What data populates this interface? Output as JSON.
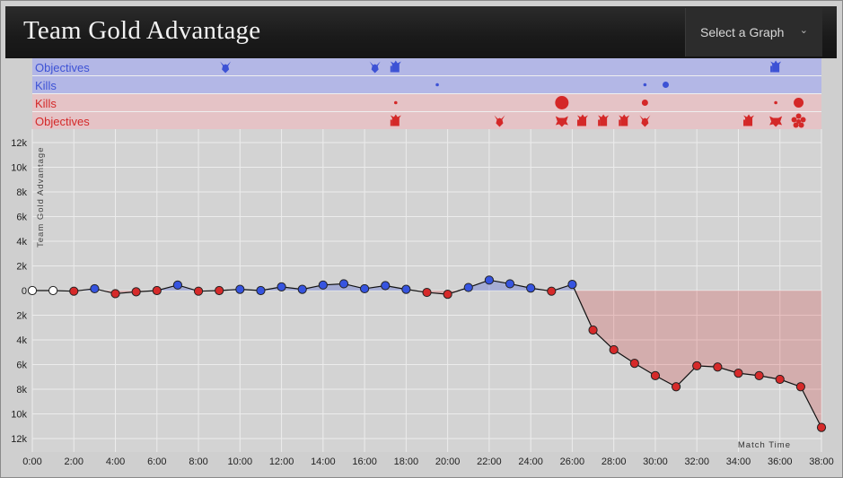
{
  "header": {
    "title": "Team Gold Advantage",
    "select_label": "Select a Graph"
  },
  "colors": {
    "blue": "#3d52d5",
    "red": "#d42828",
    "blue_band": "#b3b7e6",
    "red_band": "#e5c3c6",
    "plot_bg": "#d3d3d3"
  },
  "rows": [
    {
      "label": "Objectives",
      "team": "blue",
      "kind": "objectives",
      "events": [
        {
          "t": 9.3,
          "icon": "dragon"
        },
        {
          "t": 16.5,
          "icon": "dragon"
        },
        {
          "t": 17.5,
          "icon": "tower"
        },
        {
          "t": 35.8,
          "icon": "tower"
        }
      ]
    },
    {
      "label": "Kills",
      "team": "blue",
      "kind": "kills",
      "events": [
        {
          "t": 19.5,
          "n": 1
        },
        {
          "t": 29.5,
          "n": 1
        },
        {
          "t": 30.5,
          "n": 2
        }
      ]
    },
    {
      "label": "Kills",
      "team": "red",
      "kind": "kills",
      "events": [
        {
          "t": 17.5,
          "n": 1
        },
        {
          "t": 25.5,
          "n": 4
        },
        {
          "t": 29.5,
          "n": 2
        },
        {
          "t": 35.8,
          "n": 1
        },
        {
          "t": 36.9,
          "n": 3
        }
      ]
    },
    {
      "label": "Objectives",
      "team": "red",
      "kind": "objectives",
      "events": [
        {
          "t": 17.5,
          "icon": "tower"
        },
        {
          "t": 22.5,
          "icon": "dragon"
        },
        {
          "t": 25.5,
          "icon": "baron"
        },
        {
          "t": 26.5,
          "icon": "tower"
        },
        {
          "t": 27.5,
          "icon": "tower"
        },
        {
          "t": 28.5,
          "icon": "tower"
        },
        {
          "t": 29.5,
          "icon": "dragon"
        },
        {
          "t": 34.5,
          "icon": "tower"
        },
        {
          "t": 35.8,
          "icon": "baron"
        },
        {
          "t": 36.9,
          "icon": "nexus"
        }
      ]
    }
  ],
  "chart_data": {
    "type": "line",
    "title": "Team Gold Advantage",
    "xlabel": "Match Time",
    "ylabel": "Team Gold Advantage",
    "x": [
      0,
      1,
      2,
      3,
      4,
      5,
      6,
      7,
      8,
      9,
      10,
      11,
      12,
      13,
      14,
      15,
      16,
      17,
      18,
      19,
      20,
      21,
      22,
      23,
      24,
      25,
      26,
      27,
      28,
      29,
      30,
      31,
      32,
      33,
      34,
      35,
      36,
      37,
      38
    ],
    "y": [
      0,
      0,
      -50,
      150,
      -250,
      -100,
      0,
      450,
      -50,
      0,
      100,
      0,
      300,
      100,
      450,
      550,
      150,
      400,
      100,
      -150,
      -300,
      250,
      850,
      550,
      200,
      -50,
      500,
      -3200,
      -4800,
      -5900,
      -6900,
      -7800,
      -6100,
      -6200,
      -6700,
      -6900,
      -7200,
      -7800,
      -11100
    ],
    "point_team": [
      "neutral",
      "neutral",
      "red",
      "blue",
      "red",
      "red",
      "red",
      "blue",
      "red",
      "red",
      "blue",
      "blue",
      "blue",
      "blue",
      "blue",
      "blue",
      "blue",
      "blue",
      "blue",
      "red",
      "red",
      "blue",
      "blue",
      "blue",
      "blue",
      "red",
      "blue",
      "red",
      "red",
      "red",
      "red",
      "red",
      "red",
      "red",
      "red",
      "red",
      "red",
      "red",
      "red"
    ],
    "xlim": [
      0,
      38
    ],
    "ylim": [
      -12500,
      12500
    ],
    "xticks": [
      0,
      2,
      4,
      6,
      8,
      10,
      12,
      14,
      16,
      18,
      20,
      22,
      24,
      26,
      28,
      30,
      32,
      34,
      36,
      38
    ],
    "xtick_labels": [
      "0:00",
      "2:00",
      "4:00",
      "6:00",
      "8:00",
      "10:00",
      "12:00",
      "14:00",
      "16:00",
      "18:00",
      "20:00",
      "22:00",
      "24:00",
      "26:00",
      "28:00",
      "30:00",
      "32:00",
      "34:00",
      "36:00",
      "38:00"
    ],
    "yticks": [
      12000,
      10000,
      8000,
      6000,
      4000,
      2000,
      0,
      -2000,
      -4000,
      -6000,
      -8000,
      -10000,
      -12000
    ],
    "ytick_labels": [
      "12k",
      "10k",
      "8k",
      "6k",
      "4k",
      "2k",
      "0",
      "2k",
      "4k",
      "6k",
      "8k",
      "10k",
      "12k"
    ],
    "grid": true
  }
}
